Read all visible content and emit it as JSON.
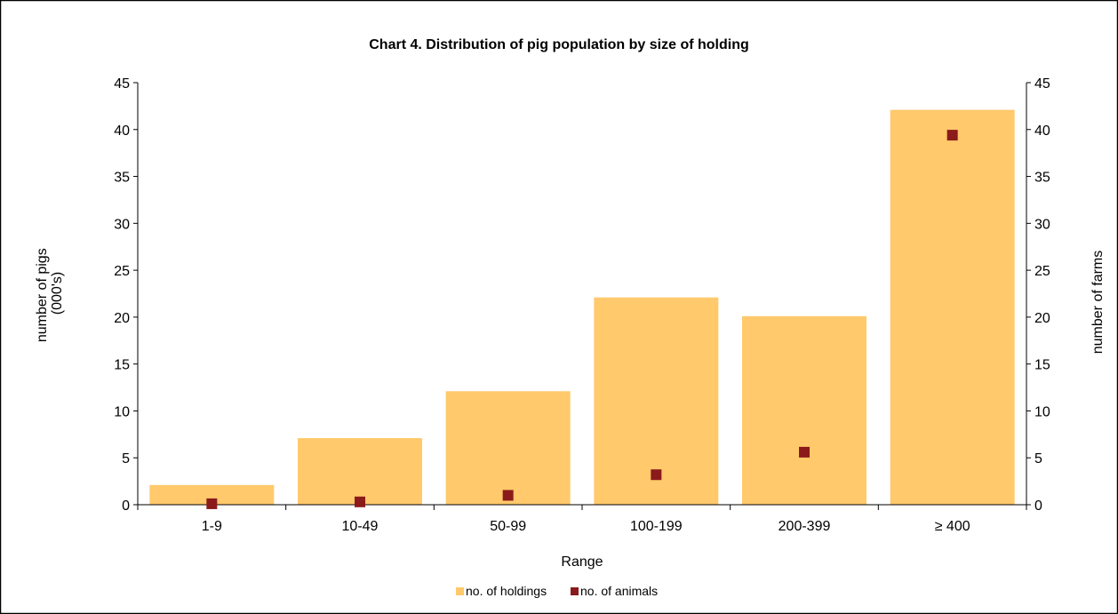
{
  "chart_data": {
    "type": "bar",
    "title": "Chart 4.  Distribution of pig population by size of holding",
    "categories": [
      "1-9",
      "10-49",
      "50-99",
      "100-199",
      "200-399",
      "≥ 400"
    ],
    "xlabel": "Range",
    "ylabel_left_lines": [
      "number of pigs",
      "(000's)"
    ],
    "ylabel_right": "number of farms",
    "ylim": [
      0,
      45
    ],
    "yticks": [
      0,
      5,
      10,
      15,
      20,
      25,
      30,
      35,
      40,
      45
    ],
    "grid": false,
    "legend_position": "bottom",
    "series": [
      {
        "name": "no. of holdings",
        "kind": "bar",
        "axis": "right",
        "color": "#FFC96C",
        "values": [
          2.1,
          7.1,
          12.1,
          22.1,
          20.1,
          42.1
        ]
      },
      {
        "name": "no. of animals",
        "kind": "marker",
        "axis": "left",
        "color": "#8B1A1A",
        "values": [
          0.1,
          0.3,
          1.0,
          3.2,
          5.6,
          39.4
        ]
      }
    ]
  }
}
